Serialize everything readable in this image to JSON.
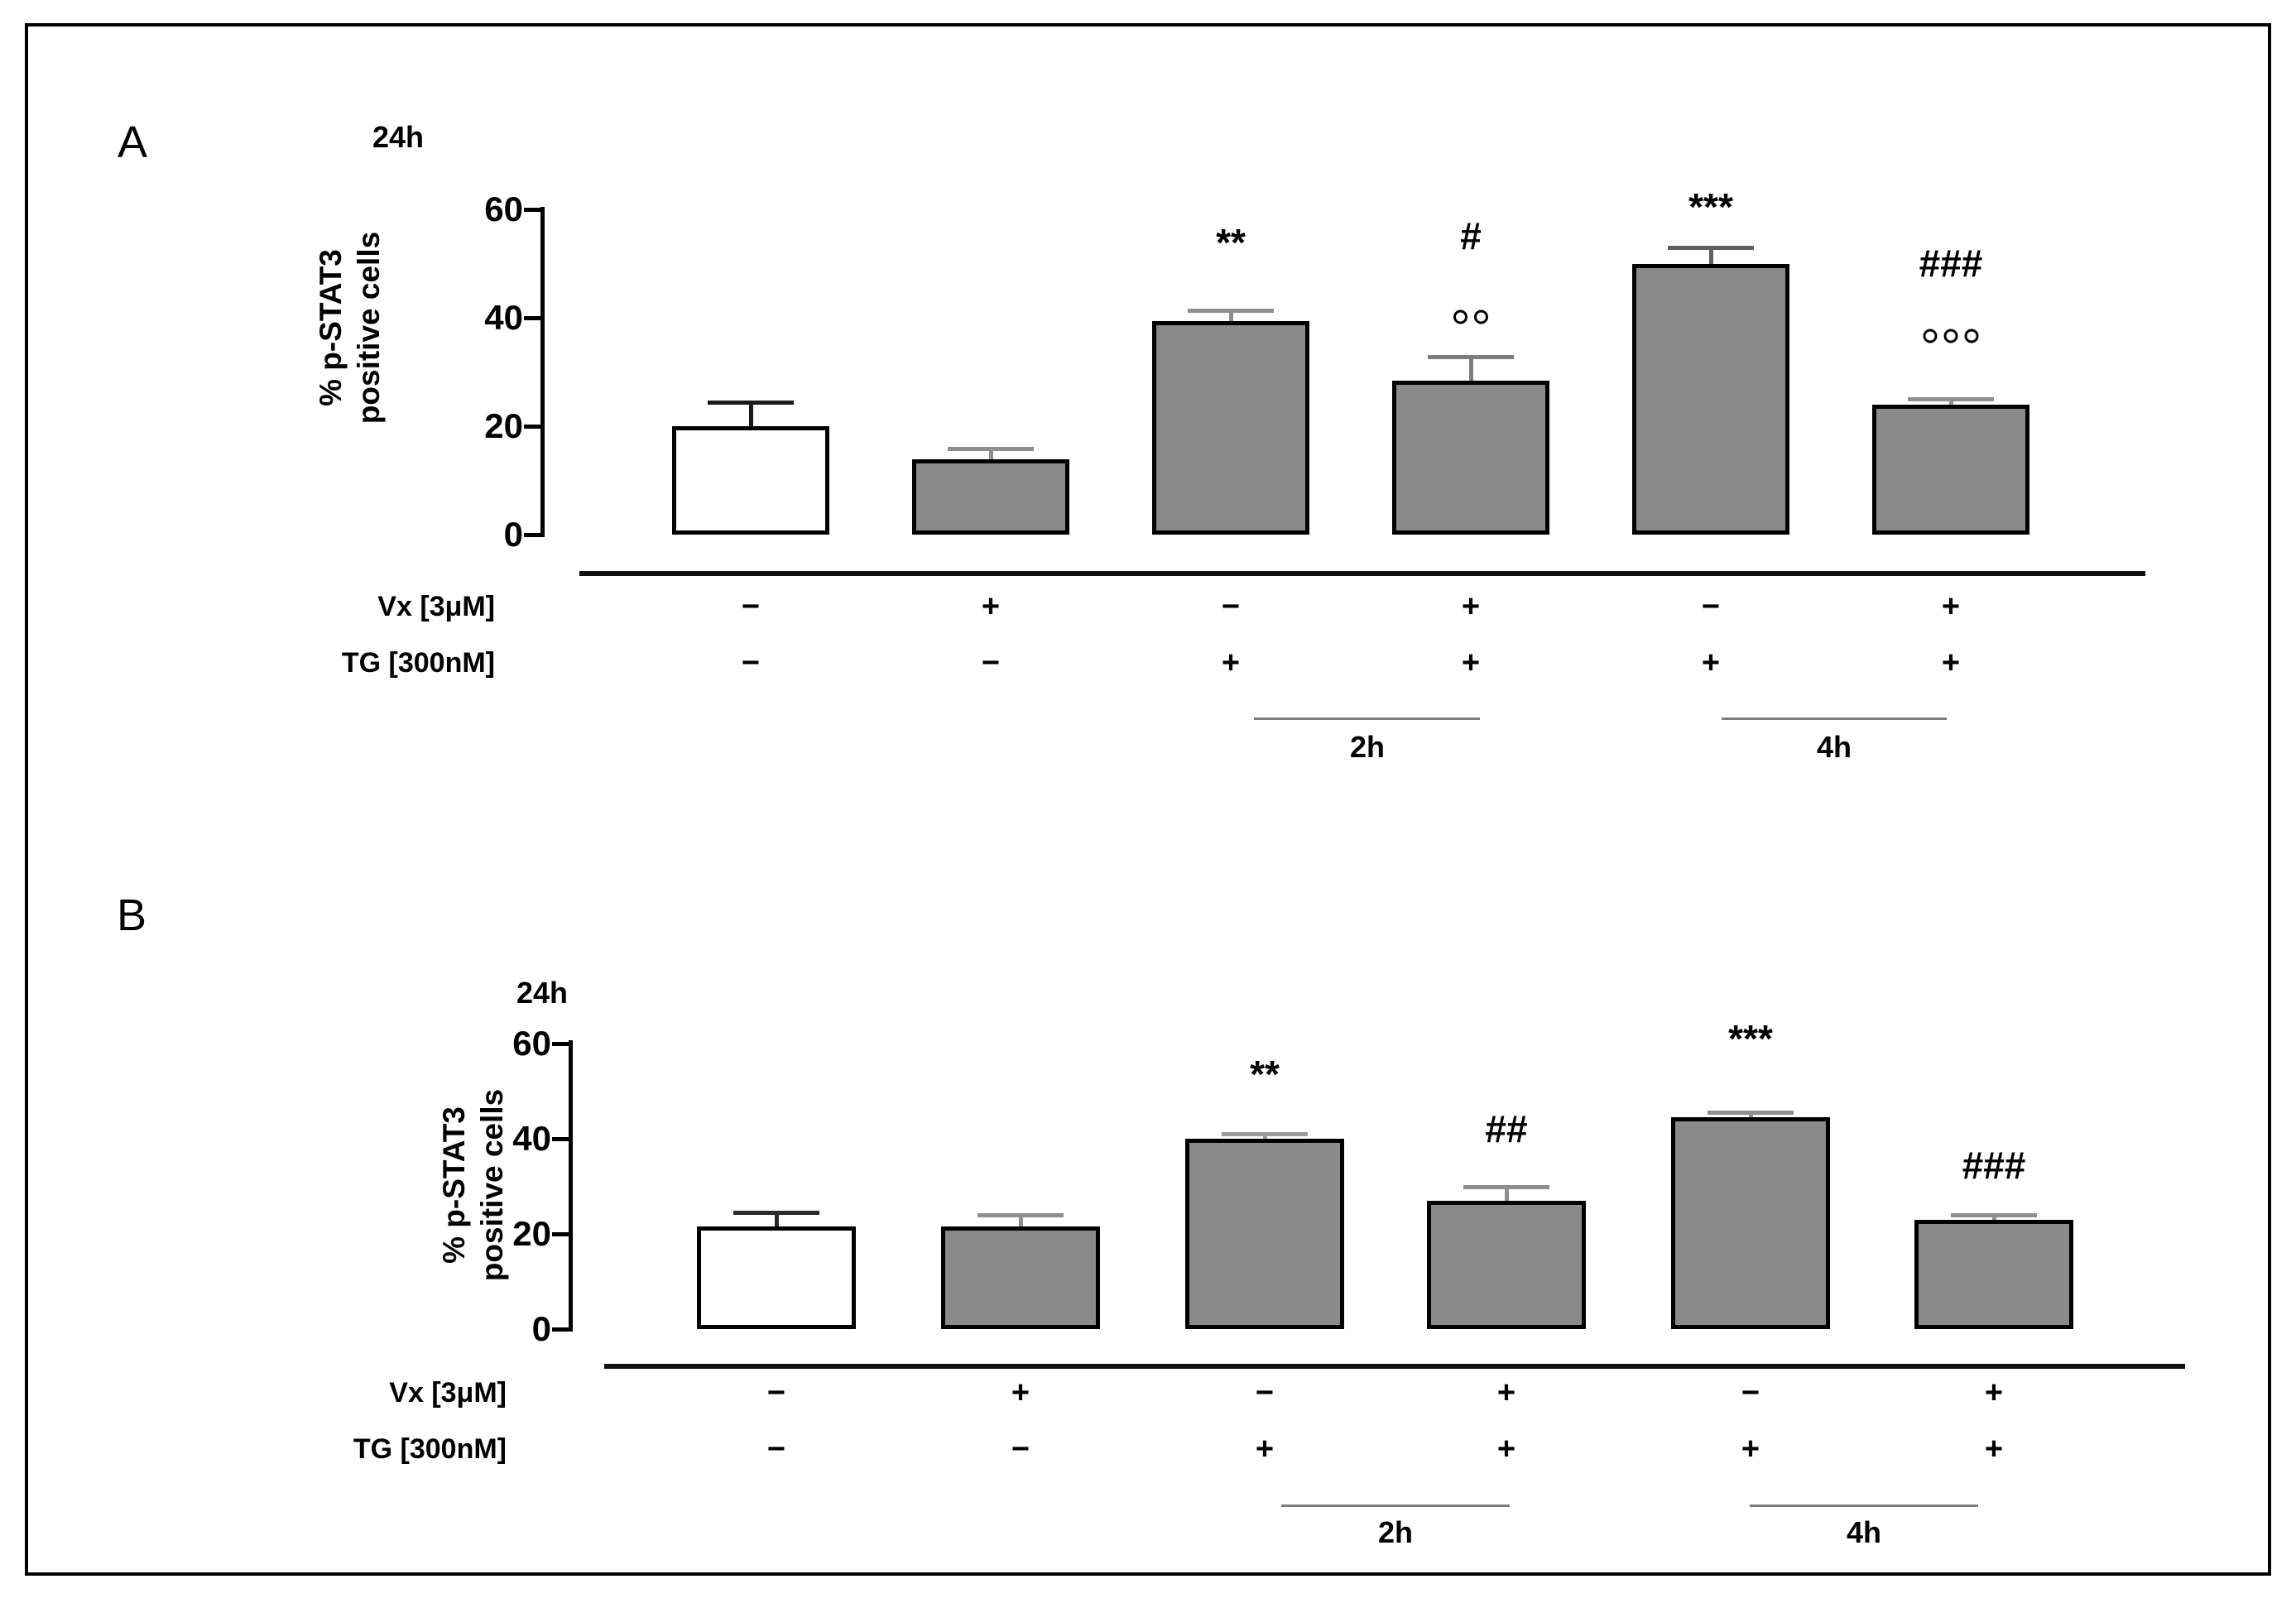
{
  "chart_data": [
    {
      "type": "bar",
      "panel_label": "A",
      "subtitle": "24h",
      "ylabel": "% p-STAT3 positive cells",
      "ylabel_lines": [
        "% p-STAT3",
        "positive cells"
      ],
      "ylim": [
        0,
        60
      ],
      "yticks": [
        0,
        20,
        40,
        60
      ],
      "grid": false,
      "legend_position": "none",
      "categories": [
        "Vx- TG-",
        "Vx+ TG-",
        "Vx- TG+ 2h",
        "Vx+ TG+ 2h",
        "Vx- TG+ 4h",
        "Vx+ TG+ 4h"
      ],
      "values": [
        19.5,
        13.5,
        39,
        28,
        49.5,
        23.5
      ],
      "errors": [
        4.5,
        2,
        2,
        4.5,
        3,
        1
      ],
      "bar_fills": [
        "#ffffff",
        "#8a8a8a",
        "#8a8a8a",
        "#8a8a8a",
        "#8a8a8a",
        "#8a8a8a"
      ],
      "bar_border_color": "#000000",
      "error_colors": [
        "#1a1a1a",
        "#8f8f8f",
        "#8f8f8f",
        "#7d7d7d",
        "#5f5f5f",
        "#8f8f8f"
      ],
      "annotations": [
        [],
        [],
        [
          "**"
        ],
        [
          "#",
          "°°"
        ],
        [
          "***"
        ],
        [
          "###",
          "°°°"
        ]
      ],
      "condition_rows": [
        {
          "label": "Vx   [3μM]",
          "marks": [
            "−",
            "+",
            "−",
            "+",
            "−",
            "+"
          ]
        },
        {
          "label": "TG  [300nM]",
          "marks": [
            "−",
            "−",
            "+",
            "+",
            "+",
            "+"
          ]
        }
      ],
      "brackets": [
        {
          "label": "2h"
        },
        {
          "label": "4h"
        }
      ]
    },
    {
      "type": "bar",
      "panel_label": "B",
      "subtitle": "24h",
      "ylabel": "% p-STAT3 positive cells",
      "ylabel_lines": [
        "% p-STAT3",
        "positive cells"
      ],
      "ylim": [
        0,
        60
      ],
      "yticks": [
        0,
        20,
        40,
        60
      ],
      "grid": false,
      "legend_position": "none",
      "categories": [
        "Vx- TG-",
        "Vx+ TG-",
        "Vx- TG+ 2h",
        "Vx+ TG+ 2h",
        "Vx- TG+ 4h",
        "Vx+ TG+ 4h"
      ],
      "values": [
        21,
        21,
        39.5,
        26.5,
        44,
        22.5
      ],
      "errors": [
        3,
        2.5,
        1,
        3,
        1,
        1
      ],
      "bar_fills": [
        "#ffffff",
        "#8a8a8a",
        "#8a8a8a",
        "#8a8a8a",
        "#8a8a8a",
        "#8a8a8a"
      ],
      "bar_border_color": "#000000",
      "error_colors": [
        "#2a2a2a",
        "#8f8f8f",
        "#9a9a9a",
        "#8f8f8f",
        "#8f8f8f",
        "#8f8f8f"
      ],
      "annotations": [
        [],
        [],
        [
          "**"
        ],
        [
          "##"
        ],
        [
          "***"
        ],
        [
          "###"
        ]
      ],
      "condition_rows": [
        {
          "label": "Vx   [3μM]",
          "marks": [
            "−",
            "+",
            "−",
            "+",
            "−",
            "+"
          ]
        },
        {
          "label": "TG  [300nM]",
          "marks": [
            "−",
            "−",
            "+",
            "+",
            "+",
            "+"
          ]
        }
      ],
      "brackets": [
        {
          "label": "2h"
        },
        {
          "label": "4h"
        }
      ]
    }
  ]
}
